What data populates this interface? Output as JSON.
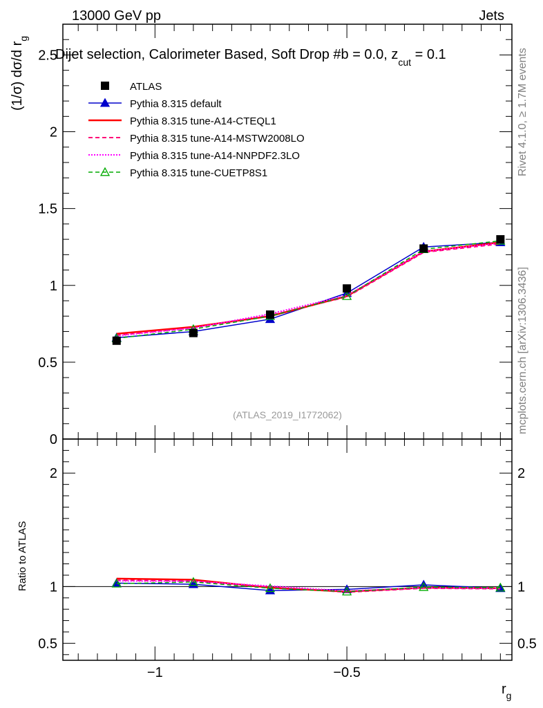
{
  "header": {
    "left": "13000 GeV pp",
    "right": "Jets",
    "subtitle": "Dijet selection, Calorimeter Based, Soft Drop #b = 0.0, z",
    "subtitle_sub": "cut",
    "subtitle_end": " = 0.1"
  },
  "side": {
    "rivet": "Rivet 4.1.0, ≥ 1.7M events",
    "mcplots": "mcplots.cern.ch [arXiv:1306.3436]"
  },
  "watermark": "(ATLAS_2019_I1772062)",
  "chart_data": {
    "type": "line",
    "title": "Dijet selection, Calorimeter Based, Soft Drop #b = 0.0, z_cut = 0.1",
    "ylabel_main": "(1/σ) dσ/d r",
    "ylabel_main_sub": "g",
    "ylabel_ratio": "Ratio to ATLAS",
    "xlabel": "r",
    "xlabel_sub": "g",
    "xlim": [
      -1.24,
      -0.07
    ],
    "ylim_main": [
      0,
      2.7
    ],
    "ylim_ratio": [
      0.35,
      2.3
    ],
    "x_ticks": [
      {
        "value": -1.0,
        "label": "−1"
      },
      {
        "value": -0.5,
        "label": "−0.5"
      }
    ],
    "y_ticks_main": [
      {
        "value": 0,
        "label": "0"
      },
      {
        "value": 0.5,
        "label": "0.5"
      },
      {
        "value": 1,
        "label": "1"
      },
      {
        "value": 1.5,
        "label": "1.5"
      },
      {
        "value": 2,
        "label": "2"
      },
      {
        "value": 2.5,
        "label": "2.5"
      }
    ],
    "y_ticks_ratio": [
      {
        "value": 0.5,
        "label": "0.5"
      },
      {
        "value": 1,
        "label": "1"
      },
      {
        "value": 2,
        "label": "2"
      }
    ],
    "x": [
      -1.1,
      -0.9,
      -0.7,
      -0.5,
      -0.3,
      -0.1
    ],
    "data": {
      "name": "ATLAS",
      "values": [
        0.64,
        0.69,
        0.81,
        0.98,
        1.24,
        1.3
      ]
    },
    "series": [
      {
        "name": "Pythia 8.315 default",
        "color": "#0000cc",
        "dash": "",
        "marker": "triangle-filled",
        "width": 1.5,
        "values": [
          0.66,
          0.7,
          0.78,
          0.95,
          1.25,
          1.28
        ],
        "ratio": [
          1.03,
          1.02,
          0.965,
          0.975,
          1.015,
          0.985
        ]
      },
      {
        "name": "Pythia 8.315 tune-A14-CTEQL1",
        "color": "#ff0000",
        "dash": "",
        "marker": "none",
        "width": 2.5,
        "values": [
          0.685,
          0.73,
          0.8,
          0.93,
          1.22,
          1.28
        ],
        "ratio": [
          1.07,
          1.06,
          0.99,
          0.955,
          0.99,
          0.985
        ]
      },
      {
        "name": "Pythia 8.315 tune-A14-MSTW2008LO",
        "color": "#ff0077",
        "dash": "6,4",
        "marker": "none",
        "width": 2,
        "values": [
          0.675,
          0.725,
          0.805,
          0.925,
          1.215,
          1.27
        ],
        "ratio": [
          1.055,
          1.05,
          0.995,
          0.95,
          0.985,
          0.98
        ]
      },
      {
        "name": "Pythia 8.315 tune-A14-NNPDF2.3LO",
        "color": "#ff00ff",
        "dash": "2,2",
        "marker": "none",
        "width": 2,
        "values": [
          0.672,
          0.722,
          0.815,
          0.935,
          1.22,
          1.275
        ],
        "ratio": [
          1.05,
          1.045,
          1.005,
          0.96,
          0.99,
          0.985
        ]
      },
      {
        "name": "Pythia 8.315 tune-CUETP8S1",
        "color": "#00aa00",
        "dash": "6,4",
        "marker": "triangle-open",
        "width": 1.5,
        "values": [
          0.655,
          0.715,
          0.8,
          0.93,
          1.235,
          1.29
        ],
        "ratio": [
          1.025,
          1.04,
          0.985,
          0.955,
          0.995,
          0.99
        ]
      }
    ]
  }
}
